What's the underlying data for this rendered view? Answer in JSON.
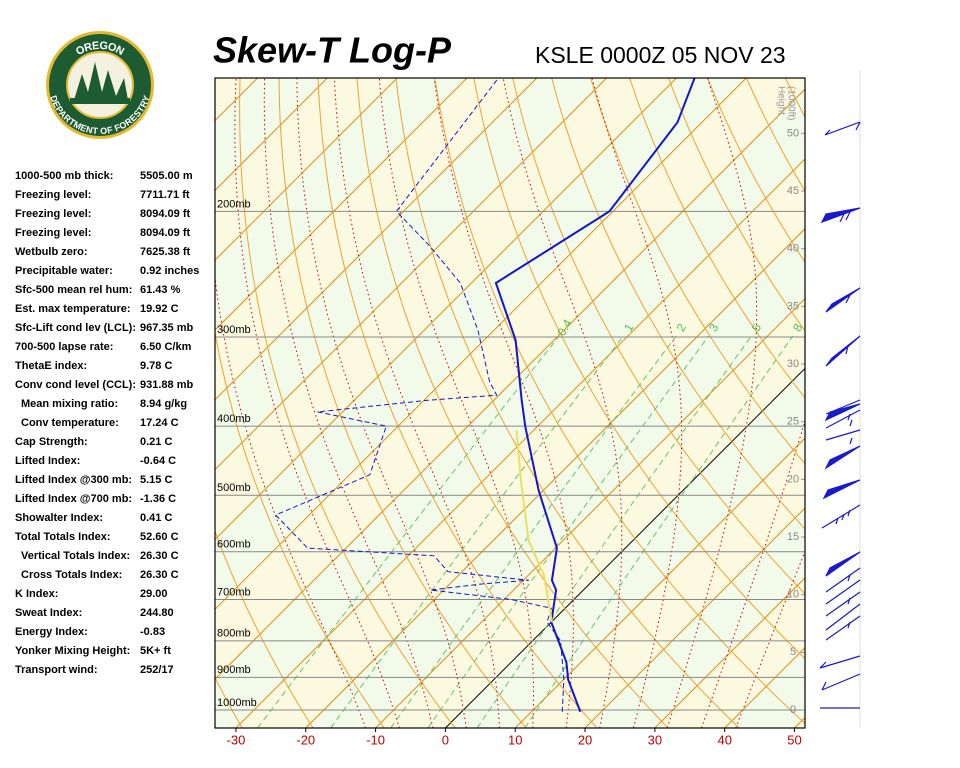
{
  "logo": {
    "top": "OREGON",
    "bottom": "DEPARTMENT OF FORESTRY"
  },
  "stats": [
    [
      "1000-500 mb thick:",
      "5505.00 m"
    ],
    [
      "Freezing level:",
      "7711.71 ft"
    ],
    [
      "Freezing level:",
      "8094.09 ft"
    ],
    [
      "Freezing level:",
      "8094.09 ft"
    ],
    [
      "Wetbulb zero:",
      "7625.38 ft"
    ],
    [
      "Precipitable water:",
      "0.92 inches"
    ],
    [
      "Sfc-500 mean rel hum:",
      "61.43 %"
    ],
    [
      "Est. max temperature:",
      "19.92 C"
    ],
    [
      "Sfc-Lift cond lev (LCL):",
      "967.35 mb"
    ],
    [
      "700-500 lapse rate:",
      "6.50 C/km"
    ],
    [
      "ThetaE index:",
      "9.78 C"
    ],
    [
      "Conv cond level (CCL):",
      "931.88 mb"
    ],
    [
      "Mean mixing ratio:",
      "8.94 g/kg"
    ],
    [
      "Conv temperature:",
      "17.24 C"
    ],
    [
      "Cap Strength:",
      "0.21 C"
    ],
    [
      "Lifted Index:",
      "-0.64 C"
    ],
    [
      "Lifted Index @300 mb:",
      "5.15 C"
    ],
    [
      "Lifted Index @700 mb:",
      "-1.36 C"
    ],
    [
      "Showalter Index:",
      "0.41 C"
    ],
    [
      "Total Totals Index:",
      "52.60 C"
    ],
    [
      "Vertical Totals Index:",
      "26.30 C"
    ],
    [
      "Cross Totals Index:",
      "26.30 C"
    ],
    [
      "K Index:",
      "29.00"
    ],
    [
      "Sweat Index:",
      "244.80"
    ],
    [
      "Energy Index:",
      "-0.83"
    ],
    [
      "Yonker Mixing Height:",
      "5K+ ft"
    ],
    [
      "Transport wind:",
      "252/17"
    ]
  ],
  "chart_data": {
    "type": "skewt",
    "title": "Skew-T Log-P",
    "subtitle": "KSLE 0000Z 05 NOV 23",
    "xlim": [
      -33,
      51.5
    ],
    "xticks": [
      -30,
      -20,
      -10,
      0,
      10,
      20,
      30,
      40,
      50
    ],
    "ylim": [
      1060,
      130
    ],
    "ylog": true,
    "yticks": [
      {
        "value": 1000,
        "label": "1000mb"
      },
      {
        "value": 900,
        "label": "900mb"
      },
      {
        "value": 800,
        "label": "800mb"
      },
      {
        "value": 700,
        "label": "700mb"
      },
      {
        "value": 600,
        "label": "600mb"
      },
      {
        "value": 500,
        "label": "500mb"
      },
      {
        "value": 400,
        "label": "400mb"
      },
      {
        "value": 300,
        "label": "300mb"
      },
      {
        "value": 200,
        "label": "200mb"
      }
    ],
    "y2label": [
      "Height",
      "(1000ft)"
    ],
    "y2lim": [
      -1.56,
      54.8
    ],
    "y2ticks": [
      0,
      5,
      10,
      15,
      20,
      25,
      30,
      35,
      40,
      45,
      50
    ],
    "mixing_ratios": [
      0.4,
      1,
      2,
      3,
      5,
      8
    ],
    "series": [
      {
        "color": "#1414cc",
        "dash": false,
        "pressure": [
          1006,
          906,
          857,
          753,
          679,
          658,
          593,
          492,
          400,
          368,
          303,
          252,
          200,
          150,
          130
        ],
        "values": [
          17.0,
          10.6,
          7.9,
          0,
          -3.9,
          -5.9,
          -9.8,
          -20.7,
          -31.8,
          -36.0,
          -45.5,
          -56.5,
          -50.5,
          -53.5,
          -57.4
        ]
      },
      {
        "color": "#1414cc",
        "dash": true,
        "pressure": [
          1006,
          906,
          800,
          753,
          720,
          700,
          679,
          665,
          658,
          640,
          608,
          593,
          533,
          468,
          400,
          382,
          368,
          362,
          347,
          293,
          252,
          223,
          200,
          130
        ],
        "values": [
          14.4,
          10.0,
          4.0,
          -0.6,
          -2.0,
          -9.0,
          -21.9,
          -15.0,
          -9.2,
          -22.0,
          -26.3,
          -45.5,
          -54.8,
          -47.1,
          -51.7,
          -63.6,
          -49.5,
          -40.3,
          -43.2,
          -52.4,
          -61.6,
          -71.5,
          -81.0,
          -85.5
        ]
      },
      {
        "color": "#e8e060",
        "dash": false,
        "pressure": [
          753,
          647,
          578,
          476,
          405
        ],
        "values": [
          0.1,
          -7.8,
          -15.0,
          -24.7,
          -32.5
        ]
      }
    ]
  }
}
